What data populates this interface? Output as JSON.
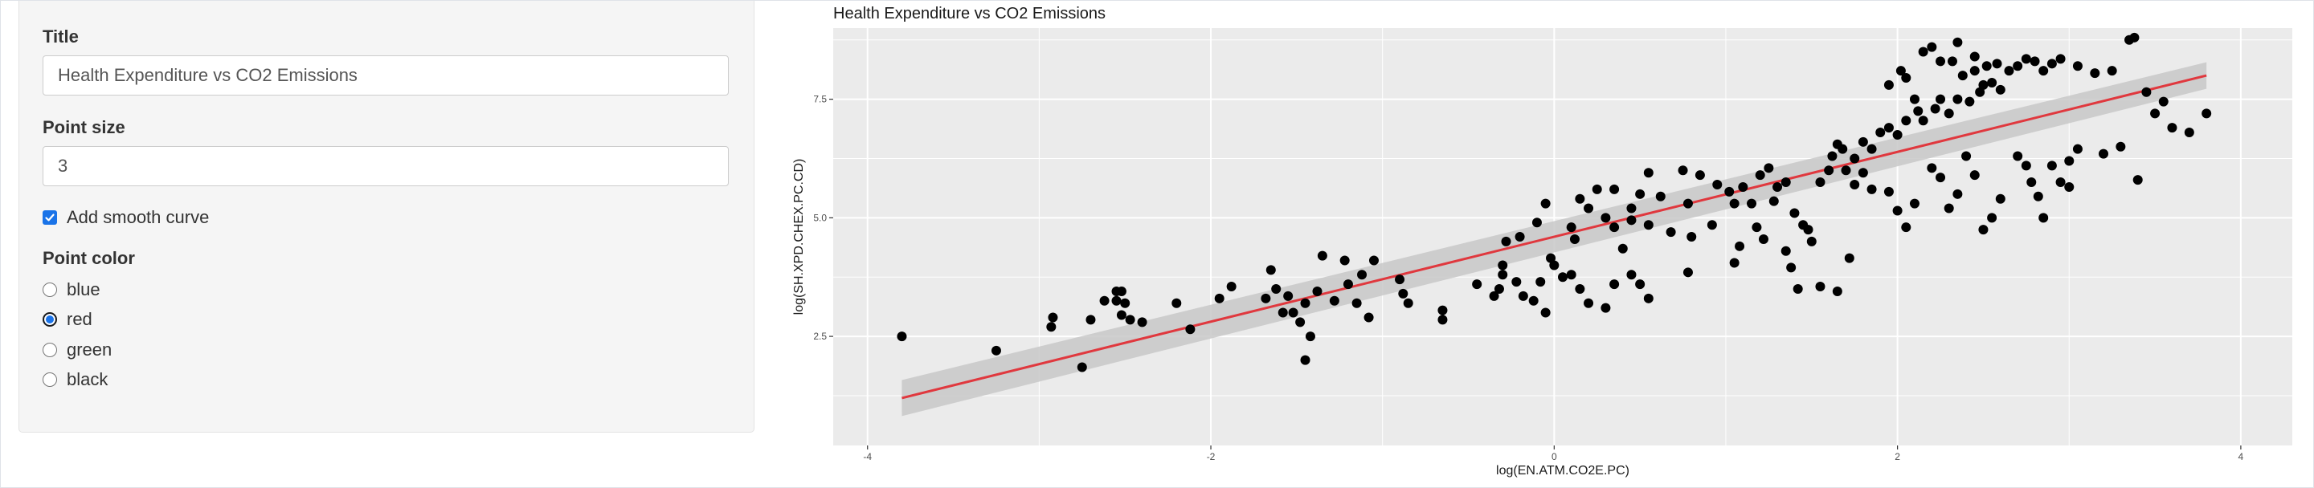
{
  "sidebar": {
    "title_label": "Title",
    "title_value": "Health Expenditure vs CO2 Emissions",
    "size_label": "Point size",
    "size_value": "3",
    "smooth_label": "Add smooth curve",
    "color_label": "Point color",
    "color_options": [
      "blue",
      "red",
      "green",
      "black"
    ],
    "selected_color": "red"
  },
  "colors": {
    "accent": "#1a73e8",
    "panel_background": "#ebebeb",
    "grid": "#ffffff",
    "points": "#000000",
    "smooth_line": "#e0383e",
    "confidence_band": "#c8c8c8"
  },
  "chart_data": {
    "type": "scatter",
    "title": "Health Expenditure vs CO2 Emissions",
    "xlabel": "log(EN.ATM.CO2E.PC)",
    "ylabel": "log(SH.XPD.CHEX.PC.CD)",
    "xlim": [
      -4.2,
      4.3
    ],
    "ylim": [
      0.2,
      9.0
    ],
    "x_ticks": [
      -4,
      -2,
      0,
      2,
      4
    ],
    "x_tick_labels": [
      "-4",
      "-2",
      "0",
      "2",
      "4"
    ],
    "y_ticks": [
      2.5,
      5.0,
      7.5
    ],
    "y_tick_labels": [
      "2.5",
      "5.0",
      "7.5"
    ],
    "grid": true,
    "smooth": {
      "method": "linear",
      "x": [
        -3.8,
        3.8
      ],
      "y": [
        1.2,
        8.0
      ],
      "band_halfwidth": [
        0.38,
        0.28
      ]
    },
    "points": [
      [
        -3.8,
        2.5
      ],
      [
        -3.25,
        2.2
      ],
      [
        -2.75,
        1.85
      ],
      [
        -2.92,
        2.9
      ],
      [
        -2.93,
        2.7
      ],
      [
        -2.7,
        2.85
      ],
      [
        -2.62,
        3.25
      ],
      [
        -2.55,
        3.45
      ],
      [
        -2.52,
        3.45
      ],
      [
        -2.55,
        3.25
      ],
      [
        -2.5,
        3.2
      ],
      [
        -2.52,
        2.95
      ],
      [
        -2.47,
        2.85
      ],
      [
        -2.4,
        2.8
      ],
      [
        -2.2,
        3.2
      ],
      [
        -2.12,
        2.65
      ],
      [
        -1.95,
        3.3
      ],
      [
        -1.88,
        3.55
      ],
      [
        -1.68,
        3.3
      ],
      [
        -1.65,
        3.9
      ],
      [
        -1.62,
        3.5
      ],
      [
        -1.58,
        3.0
      ],
      [
        -1.55,
        3.35
      ],
      [
        -1.52,
        3.0
      ],
      [
        -1.48,
        2.8
      ],
      [
        -1.45,
        3.2
      ],
      [
        -1.42,
        2.5
      ],
      [
        -1.45,
        2.0
      ],
      [
        -1.38,
        3.45
      ],
      [
        -1.35,
        4.2
      ],
      [
        -1.28,
        3.25
      ],
      [
        -1.22,
        4.1
      ],
      [
        -1.2,
        3.6
      ],
      [
        -1.15,
        3.2
      ],
      [
        -1.12,
        3.8
      ],
      [
        -1.05,
        4.1
      ],
      [
        -1.08,
        2.9
      ],
      [
        -0.88,
        3.4
      ],
      [
        -0.9,
        3.7
      ],
      [
        -0.85,
        3.2
      ],
      [
        -0.65,
        2.85
      ],
      [
        -0.65,
        3.05
      ],
      [
        -0.45,
        3.6
      ],
      [
        -0.32,
        3.5
      ],
      [
        -0.35,
        3.35
      ],
      [
        -0.3,
        3.8
      ],
      [
        -0.28,
        4.5
      ],
      [
        -0.22,
        3.65
      ],
      [
        -0.18,
        3.35
      ],
      [
        -0.05,
        3.0
      ],
      [
        0.05,
        3.75
      ],
      [
        0.1,
        3.8
      ],
      [
        -0.08,
        3.65
      ],
      [
        0.0,
        4.0
      ],
      [
        -0.1,
        4.9
      ],
      [
        -0.2,
        4.6
      ],
      [
        -0.02,
        4.15
      ],
      [
        -0.05,
        5.3
      ],
      [
        0.1,
        4.8
      ],
      [
        0.25,
        5.6
      ],
      [
        -0.3,
        4.0
      ],
      [
        -0.12,
        3.25
      ],
      [
        0.15,
        3.5
      ],
      [
        0.2,
        3.2
      ],
      [
        0.3,
        3.1
      ],
      [
        0.35,
        3.6
      ],
      [
        0.45,
        3.8
      ],
      [
        0.5,
        3.6
      ],
      [
        0.55,
        3.3
      ],
      [
        0.4,
        4.35
      ],
      [
        0.12,
        4.55
      ],
      [
        0.2,
        5.2
      ],
      [
        0.15,
        5.4
      ],
      [
        0.3,
        5.0
      ],
      [
        0.35,
        5.6
      ],
      [
        0.35,
        4.8
      ],
      [
        0.45,
        5.2
      ],
      [
        0.5,
        5.5
      ],
      [
        0.55,
        4.85
      ],
      [
        0.62,
        5.45
      ],
      [
        0.68,
        4.7
      ],
      [
        0.78,
        5.3
      ],
      [
        0.75,
        6.0
      ],
      [
        0.85,
        5.9
      ],
      [
        0.95,
        5.7
      ],
      [
        1.02,
        5.55
      ],
      [
        1.05,
        5.3
      ],
      [
        1.1,
        5.65
      ],
      [
        1.15,
        5.3
      ],
      [
        1.2,
        5.9
      ],
      [
        0.55,
        5.95
      ],
      [
        0.45,
        4.95
      ],
      [
        0.8,
        4.6
      ],
      [
        0.78,
        3.85
      ],
      [
        0.92,
        4.85
      ],
      [
        1.08,
        4.4
      ],
      [
        1.05,
        4.05
      ],
      [
        1.22,
        4.55
      ],
      [
        1.18,
        4.8
      ],
      [
        1.35,
        4.3
      ],
      [
        1.4,
        5.1
      ],
      [
        1.45,
        4.85
      ],
      [
        1.48,
        4.75
      ],
      [
        1.5,
        4.5
      ],
      [
        1.3,
        5.65
      ],
      [
        1.28,
        5.35
      ],
      [
        1.25,
        6.05
      ],
      [
        1.35,
        5.75
      ],
      [
        1.55,
        5.75
      ],
      [
        1.6,
        6.0
      ],
      [
        1.62,
        6.3
      ],
      [
        1.65,
        6.55
      ],
      [
        1.68,
        6.45
      ],
      [
        1.7,
        6.0
      ],
      [
        1.75,
        6.25
      ],
      [
        1.8,
        6.6
      ],
      [
        1.85,
        6.45
      ],
      [
        1.9,
        6.8
      ],
      [
        1.95,
        6.9
      ],
      [
        2.0,
        6.75
      ],
      [
        2.05,
        7.05
      ],
      [
        2.12,
        7.25
      ],
      [
        2.15,
        7.05
      ],
      [
        2.22,
        7.3
      ],
      [
        2.25,
        7.5
      ],
      [
        2.3,
        7.2
      ],
      [
        2.35,
        7.5
      ],
      [
        2.42,
        7.45
      ],
      [
        2.48,
        7.65
      ],
      [
        2.5,
        7.8
      ],
      [
        2.55,
        7.85
      ],
      [
        2.6,
        7.7
      ],
      [
        2.1,
        7.5
      ],
      [
        2.02,
        8.1
      ],
      [
        2.15,
        8.5
      ],
      [
        2.2,
        8.6
      ],
      [
        2.25,
        8.3
      ],
      [
        2.32,
        8.3
      ],
      [
        2.38,
        8.0
      ],
      [
        2.45,
        8.1
      ],
      [
        2.52,
        8.2
      ],
      [
        2.58,
        8.25
      ],
      [
        2.65,
        8.1
      ],
      [
        2.7,
        8.2
      ],
      [
        2.75,
        8.35
      ],
      [
        2.8,
        8.3
      ],
      [
        2.85,
        8.1
      ],
      [
        2.9,
        8.25
      ],
      [
        2.95,
        8.35
      ],
      [
        3.05,
        8.2
      ],
      [
        3.15,
        8.05
      ],
      [
        3.25,
        8.1
      ],
      [
        3.35,
        8.75
      ],
      [
        3.38,
        8.8
      ],
      [
        3.45,
        7.65
      ],
      [
        3.55,
        7.45
      ],
      [
        3.2,
        6.35
      ],
      [
        3.3,
        6.5
      ],
      [
        3.4,
        5.8
      ],
      [
        3.5,
        7.2
      ],
      [
        3.6,
        6.9
      ],
      [
        3.7,
        6.8
      ],
      [
        2.7,
        6.3
      ],
      [
        2.75,
        6.1
      ],
      [
        2.78,
        5.75
      ],
      [
        2.82,
        5.45
      ],
      [
        2.85,
        5.0
      ],
      [
        2.9,
        6.1
      ],
      [
        2.95,
        5.75
      ],
      [
        3.0,
        6.2
      ],
      [
        3.05,
        6.45
      ],
      [
        2.6,
        5.4
      ],
      [
        2.55,
        5.0
      ],
      [
        2.5,
        4.75
      ],
      [
        2.45,
        5.9
      ],
      [
        2.4,
        6.3
      ],
      [
        2.35,
        5.5
      ],
      [
        2.3,
        5.2
      ],
      [
        2.25,
        5.85
      ],
      [
        2.2,
        6.05
      ],
      [
        1.95,
        5.55
      ],
      [
        2.0,
        5.15
      ],
      [
        2.05,
        4.8
      ],
      [
        2.1,
        5.3
      ],
      [
        1.85,
        5.6
      ],
      [
        1.8,
        5.95
      ],
      [
        1.75,
        5.7
      ],
      [
        1.72,
        4.15
      ],
      [
        1.65,
        3.45
      ],
      [
        1.55,
        3.55
      ],
      [
        1.42,
        3.5
      ],
      [
        1.38,
        3.95
      ],
      [
        2.35,
        8.7
      ],
      [
        2.45,
        8.4
      ],
      [
        1.95,
        7.8
      ],
      [
        2.05,
        7.95
      ],
      [
        3.8,
        7.2
      ],
      [
        3.0,
        5.65
      ]
    ]
  }
}
